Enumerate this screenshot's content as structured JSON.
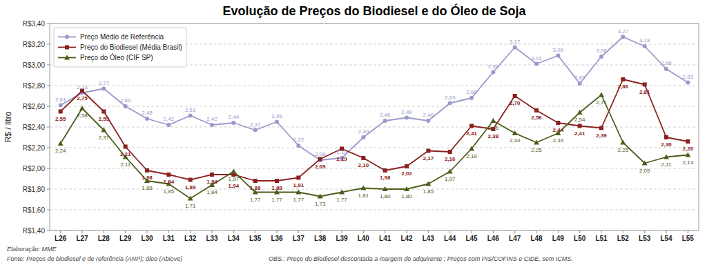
{
  "chart_data": {
    "type": "line",
    "title": "Evolução de Preços do Biodiesel e do Óleo de Soja",
    "ylabel": "R$ / litro",
    "categories": [
      "L26",
      "L27",
      "L28",
      "L29",
      "L30",
      "L31",
      "L32",
      "L33",
      "L34",
      "L35",
      "L36",
      "L37",
      "L38",
      "L39",
      "L40",
      "L41",
      "L42",
      "L43",
      "L44",
      "L45",
      "L46",
      "L47",
      "L48",
      "L49",
      "L50",
      "L51",
      "L52",
      "L53",
      "L54",
      "L55"
    ],
    "series": [
      {
        "name": "Preço Médio de Referência",
        "color": "#9999cc",
        "marker": "circle",
        "values": [
          2.61,
          2.73,
          2.77,
          2.6,
          2.48,
          2.42,
          2.51,
          2.42,
          2.44,
          2.37,
          2.45,
          2.22,
          2.08,
          2.1,
          2.3,
          2.46,
          2.49,
          2.46,
          2.63,
          2.68,
          2.93,
          3.17,
          3.01,
          3.09,
          2.82,
          3.08,
          3.27,
          3.18,
          2.96,
          2.83
        ],
        "value_labels": [
          "2,61",
          "2,73",
          "2,77",
          "2,60",
          "2,48",
          "2,42",
          "2,51",
          "2,42",
          "2,44",
          "2,37",
          "2,45",
          "2,22",
          "2,08",
          "2,10",
          "2,30",
          "2,46",
          "2,49",
          "2,46",
          "2,63",
          "2,68",
          "2,93",
          "3,17",
          "3,01",
          "3,09",
          "2,82",
          "3,08",
          "3,27",
          "3,18",
          "2,96",
          "2,83"
        ]
      },
      {
        "name": "Preço do Biodiesel (Média Brasil)",
        "color": "#8B2020",
        "marker": "square",
        "values": [
          2.55,
          2.75,
          2.55,
          2.21,
          1.98,
          1.94,
          1.89,
          1.94,
          1.94,
          1.88,
          1.88,
          1.91,
          2.09,
          2.19,
          2.1,
          1.98,
          2.02,
          2.17,
          2.16,
          2.41,
          2.38,
          2.7,
          2.56,
          2.44,
          2.41,
          2.39,
          2.86,
          2.81,
          2.3,
          2.26
        ],
        "value_labels": [
          "2,55",
          "2,75",
          "2,55",
          "2,21",
          "1,98",
          "1,94",
          "1,89",
          "1,94",
          "1,94",
          "1,88",
          "1,88",
          "1,91",
          "2,09",
          "2,19",
          "2,10",
          "1,98",
          "2,02",
          "2,17",
          "2,16",
          "2,41",
          "2,38",
          "2,70",
          "2,56",
          "2,44",
          "2,41",
          "2,39",
          "2,86",
          "2,81",
          "2,30",
          "2,26"
        ]
      },
      {
        "name": "Preço do Óleo (CIF SP)",
        "color": "#4a5e1a",
        "marker": "triangle",
        "values": [
          2.24,
          2.58,
          2.37,
          2.11,
          1.88,
          1.85,
          1.71,
          1.84,
          1.97,
          1.77,
          1.77,
          1.77,
          1.73,
          1.77,
          1.81,
          1.8,
          1.8,
          1.85,
          1.97,
          2.19,
          2.46,
          2.34,
          2.25,
          2.34,
          2.54,
          2.71,
          2.25,
          2.05,
          2.11,
          2.13
        ],
        "value_labels": [
          "2,24",
          "2,58",
          "2,37",
          "2,11",
          "1,88",
          "1,85",
          "1,71",
          "1,84",
          "1,97",
          "1,77",
          "1,77",
          "1,77",
          "1,73",
          "1,77",
          "1,81",
          "1,80",
          "1,80",
          "1,85",
          "1,97",
          "2,19",
          "2,46",
          "2,34",
          "2,25",
          "2,34",
          "2,54",
          "2,71",
          "2,25",
          "2,05",
          "2,11",
          "2,13"
        ]
      }
    ],
    "ylim": [
      1.4,
      3.4
    ],
    "yticks": [
      {
        "value": 1.4,
        "label": "R$1,40"
      },
      {
        "value": 1.6,
        "label": "R$1,60"
      },
      {
        "value": 1.8,
        "label": "R$1,80"
      },
      {
        "value": 2.0,
        "label": "R$2,00"
      },
      {
        "value": 2.2,
        "label": "R$2,20"
      },
      {
        "value": 2.4,
        "label": "R$2,40"
      },
      {
        "value": 2.6,
        "label": "R$2,60"
      },
      {
        "value": 2.8,
        "label": "R$2,80"
      },
      {
        "value": 3.0,
        "label": "R$3,00"
      },
      {
        "value": 3.2,
        "label": "R$3,20"
      },
      {
        "value": 3.4,
        "label": "R$3,40"
      }
    ],
    "grid": true,
    "legend": "upper left",
    "data_labels": true,
    "annotations": [
      "Elaboração:  MME",
      "Fonte:  Preços do biodiesel  e de referência (ANP);  óleo (Abiove)",
      "OBS.:  Preço do Biodiesel descontada a margem do adquirente ; Preços com PIS/COFINS e CIDE, sem ICMS."
    ]
  }
}
